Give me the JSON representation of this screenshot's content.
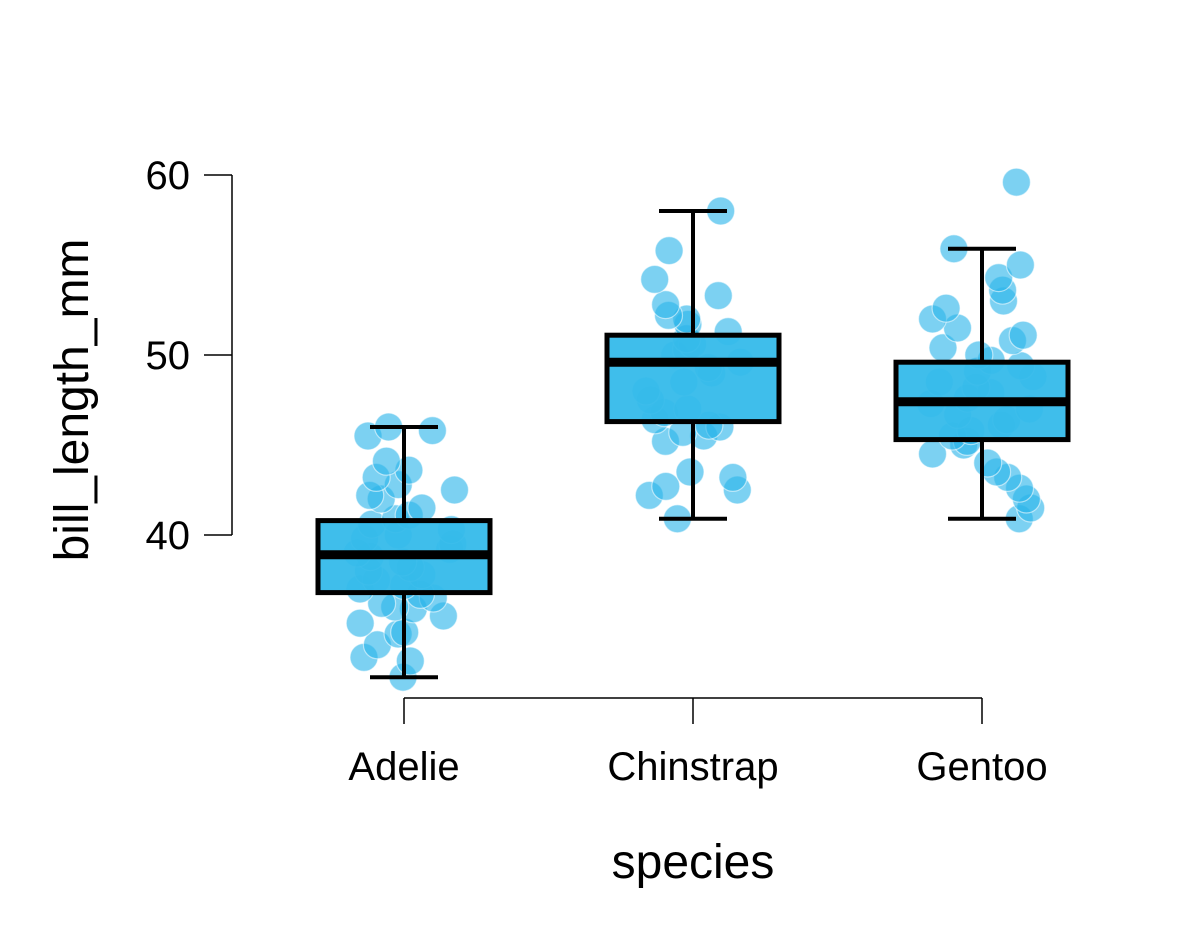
{
  "chart_data": {
    "type": "boxplot",
    "xlabel": "species",
    "ylabel": "bill_length_mm",
    "categories": [
      "Adelie",
      "Chinstrap",
      "Gentoo"
    ],
    "y_ticks": [
      40,
      50,
      60
    ],
    "ylim": [
      31,
      60.5
    ],
    "grid": false,
    "colors": {
      "box_fill": "#35baea",
      "point_fill": "#2bb4ea",
      "outline": "#000000"
    },
    "boxes": [
      {
        "category": "Adelie",
        "min": 32.1,
        "q1": 36.8,
        "median": 38.9,
        "q3": 40.8,
        "max": 46.0
      },
      {
        "category": "Chinstrap",
        "min": 40.9,
        "q1": 46.3,
        "median": 49.6,
        "q3": 51.1,
        "max": 58.0
      },
      {
        "category": "Gentoo",
        "min": 40.9,
        "q1": 45.3,
        "median": 47.4,
        "q3": 49.6,
        "max": 55.9
      }
    ],
    "points": [
      {
        "category": "Adelie",
        "values": [
          32.1,
          33.0,
          33.2,
          33.9,
          34.5,
          34.6,
          35.1,
          35.5,
          35.9,
          36.0,
          36.2,
          36.5,
          36.7,
          37.0,
          37.2,
          37.5,
          37.8,
          38.0,
          38.2,
          38.5,
          38.8,
          39.0,
          39.2,
          39.5,
          39.8,
          40.0,
          40.3,
          40.6,
          40.9,
          41.1,
          41.5,
          42.0,
          42.2,
          42.5,
          42.8,
          43.2,
          43.6,
          44.1,
          45.5,
          45.8,
          46.0
        ]
      },
      {
        "category": "Chinstrap",
        "values": [
          40.9,
          42.2,
          42.5,
          42.7,
          43.2,
          43.5,
          45.2,
          45.5,
          45.7,
          46.0,
          46.1,
          46.4,
          46.8,
          47.0,
          47.5,
          48.0,
          48.5,
          49.0,
          49.3,
          49.6,
          50.0,
          50.3,
          50.6,
          50.9,
          51.3,
          51.7,
          52.0,
          52.2,
          52.8,
          53.3,
          54.2,
          55.8,
          58.0
        ]
      },
      {
        "category": "Gentoo",
        "values": [
          40.9,
          41.5,
          42.0,
          42.6,
          43.2,
          43.5,
          44.0,
          44.5,
          45.0,
          45.2,
          45.5,
          45.8,
          46.1,
          46.4,
          46.7,
          47.0,
          47.3,
          47.6,
          47.9,
          48.2,
          48.5,
          48.8,
          49.1,
          49.4,
          49.7,
          50.0,
          50.4,
          50.8,
          51.1,
          51.5,
          52.0,
          52.6,
          53.0,
          53.6,
          54.3,
          55.0,
          55.9,
          59.6
        ]
      }
    ]
  }
}
